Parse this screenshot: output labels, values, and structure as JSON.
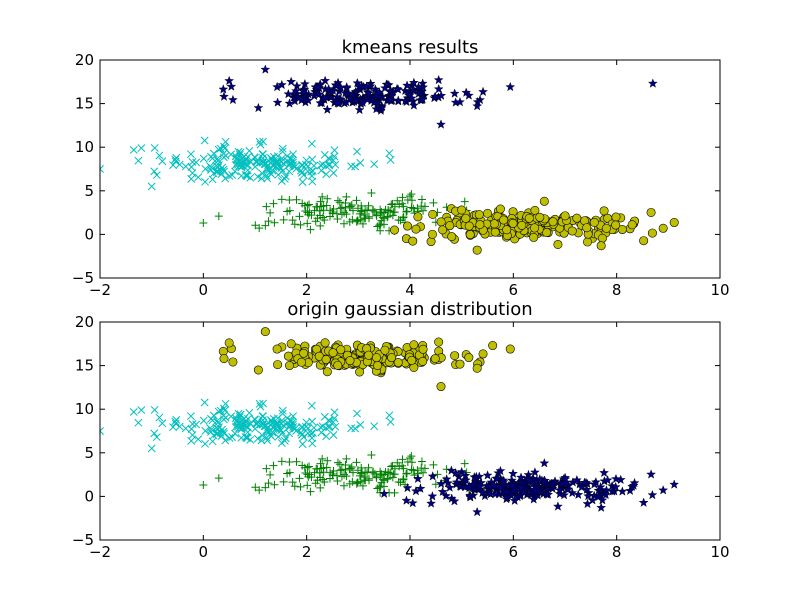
{
  "figure": {
    "background": "#ffffff"
  },
  "chart_data": [
    {
      "type": "scatter",
      "title": "kmeans results",
      "xlabel": "",
      "ylabel": "",
      "xlim": [
        -2,
        10
      ],
      "ylim": [
        -5,
        20
      ],
      "xticks": [
        -2,
        0,
        2,
        4,
        6,
        8,
        10
      ],
      "yticks": [
        -5,
        0,
        5,
        10,
        15,
        20
      ],
      "xtick_labels": [
        "−2",
        "0",
        "2",
        "4",
        "6",
        "8",
        "10"
      ],
      "ytick_labels": [
        "−5",
        "0",
        "5",
        "10",
        "15",
        "20"
      ],
      "grid": false,
      "series": [
        {
          "marker": "star",
          "color": "#000080",
          "center": [
            3.0,
            16.0
          ],
          "spread": [
            1.0,
            0.7
          ],
          "count": 200,
          "extremes": [
            [
              0.5,
              17.6
            ],
            [
              1.2,
              18.9
            ],
            [
              8.7,
              17.3
            ],
            [
              4.6,
              12.6
            ],
            [
              5.3,
              14.7
            ],
            [
              2.4,
              14.3
            ],
            [
              0.4,
              15.8
            ],
            [
              1.7,
              17.5
            ]
          ]
        },
        {
          "marker": "x",
          "color": "#00bfbf",
          "center": [
            1.0,
            8.0
          ],
          "spread": [
            0.9,
            1.0
          ],
          "count": 200,
          "extremes": [
            [
              -2.0,
              7.5
            ],
            [
              -1.2,
              9.9
            ],
            [
              -1.0,
              5.5
            ],
            [
              3.6,
              9.3
            ],
            [
              2.1,
              10.4
            ],
            [
              -0.9,
              6.8
            ]
          ]
        },
        {
          "marker": "plus",
          "color": "#008000",
          "center": [
            3.0,
            2.6
          ],
          "spread": [
            0.9,
            0.9
          ],
          "count": 150,
          "extremes": [
            [
              0.0,
              1.3
            ],
            [
              0.3,
              2.1
            ],
            [
              1.2,
              1.0
            ],
            [
              4.0,
              4.4
            ],
            [
              2.3,
              4.3
            ],
            [
              4.5,
              1.4
            ],
            [
              3.7,
              0.4
            ]
          ]
        },
        {
          "marker": "circle",
          "color": "#bfbf00",
          "center": [
            6.2,
            1.0
          ],
          "spread": [
            1.0,
            0.75
          ],
          "count": 250,
          "extremes": [
            [
              3.7,
              0.5
            ],
            [
              8.9,
              0.7
            ],
            [
              5.3,
              -1.8
            ],
            [
              6.6,
              3.8
            ],
            [
              7.7,
              -1.3
            ],
            [
              8.3,
              1.1
            ],
            [
              5.0,
              2.8
            ]
          ]
        }
      ]
    },
    {
      "type": "scatter",
      "title": "origin gaussian distribution",
      "xlabel": "",
      "ylabel": "",
      "xlim": [
        -2,
        10
      ],
      "ylim": [
        -5,
        20
      ],
      "xticks": [
        -2,
        0,
        2,
        4,
        6,
        8,
        10
      ],
      "yticks": [
        -5,
        0,
        5,
        10,
        15,
        20
      ],
      "xtick_labels": [
        "−2",
        "0",
        "2",
        "4",
        "6",
        "8",
        "10"
      ],
      "ytick_labels": [
        "−5",
        "0",
        "5",
        "10",
        "15",
        "20"
      ],
      "grid": false,
      "series": [
        {
          "marker": "circle",
          "color": "#bfbf00",
          "center": [
            3.0,
            16.0
          ],
          "spread": [
            1.0,
            0.7
          ],
          "count": 200,
          "extremes": [
            [
              0.5,
              17.6
            ],
            [
              1.2,
              18.9
            ],
            [
              5.6,
              17.3
            ],
            [
              4.6,
              12.6
            ],
            [
              5.3,
              14.7
            ],
            [
              2.4,
              14.3
            ],
            [
              0.4,
              15.8
            ],
            [
              1.7,
              17.5
            ]
          ]
        },
        {
          "marker": "x",
          "color": "#00bfbf",
          "center": [
            1.0,
            8.0
          ],
          "spread": [
            0.9,
            1.0
          ],
          "count": 200,
          "extremes": [
            [
              -2.0,
              7.5
            ],
            [
              -1.2,
              9.9
            ],
            [
              -1.0,
              5.5
            ],
            [
              3.6,
              9.3
            ],
            [
              2.1,
              10.4
            ],
            [
              -0.9,
              6.8
            ]
          ]
        },
        {
          "marker": "plus",
          "color": "#008000",
          "center": [
            3.0,
            2.6
          ],
          "spread": [
            0.9,
            0.9
          ],
          "count": 150,
          "extremes": [
            [
              0.0,
              1.3
            ],
            [
              0.3,
              2.1
            ],
            [
              1.2,
              1.0
            ],
            [
              4.0,
              4.4
            ],
            [
              2.3,
              4.3
            ],
            [
              4.5,
              1.4
            ],
            [
              3.7,
              0.4
            ]
          ]
        },
        {
          "marker": "star",
          "color": "#000080",
          "center": [
            6.2,
            1.0
          ],
          "spread": [
            1.0,
            0.75
          ],
          "count": 250,
          "extremes": [
            [
              3.5,
              0.3
            ],
            [
              8.9,
              0.7
            ],
            [
              5.3,
              -1.8
            ],
            [
              6.6,
              3.8
            ],
            [
              7.7,
              -1.3
            ],
            [
              8.3,
              1.1
            ],
            [
              5.0,
              2.8
            ]
          ]
        }
      ]
    }
  ]
}
